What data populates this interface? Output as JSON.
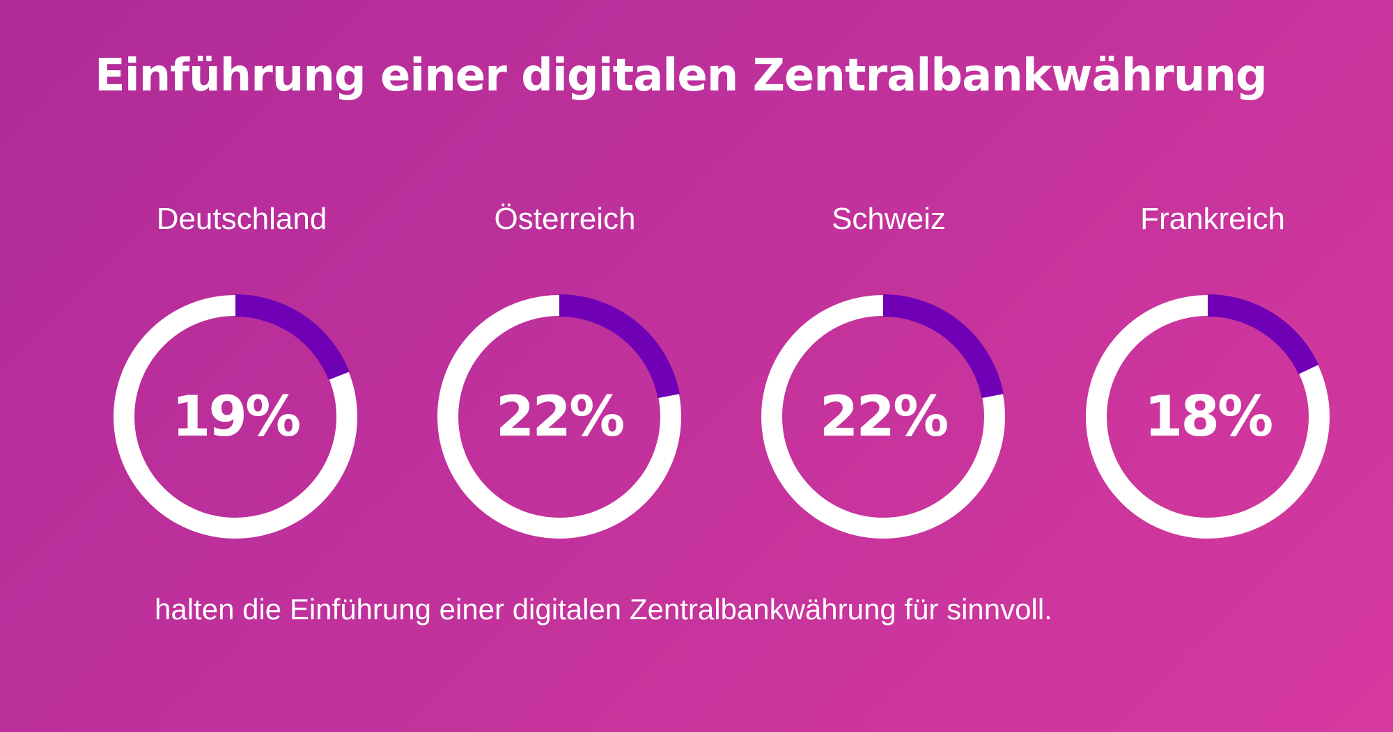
{
  "title": "Einführung einer digitalen Zentralbankwährung",
  "footnote": "halten die Einführung einer digitalen Zentralbankwährung für sinnvoll.",
  "colors": {
    "ring": "#FFFFFF",
    "highlight": "#6F00B5",
    "background_start": "#B02B98",
    "background_end": "#D6399E"
  },
  "chart_data": {
    "type": "pie",
    "categories": [
      "Deutschland",
      "Österreich",
      "Schweiz",
      "Frankreich"
    ],
    "values": [
      19,
      22,
      22,
      18
    ],
    "labels": [
      "19%",
      "22%",
      "22%",
      "18%"
    ],
    "unit": "%",
    "total": 100
  }
}
